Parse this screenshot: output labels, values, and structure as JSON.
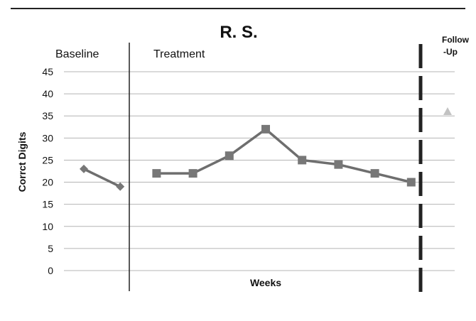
{
  "chart_data": {
    "type": "line",
    "title": "R. S.",
    "xlabel": "Weeks",
    "ylabel": "Corrct Digits",
    "ylim": [
      0,
      45
    ],
    "yticks": [
      0,
      5,
      10,
      15,
      20,
      25,
      30,
      35,
      40,
      45
    ],
    "grid": true,
    "phase_labels": {
      "baseline": "Baseline",
      "treatment": "Treatment",
      "follow_up_line1": "Follow",
      "follow_up_line2": "-Up"
    },
    "series": [
      {
        "phase": "baseline",
        "marker": "diamond",
        "x": [
          1,
          2
        ],
        "values": [
          23,
          19
        ]
      },
      {
        "phase": "treatment",
        "marker": "square",
        "x": [
          3,
          4,
          5,
          6,
          7,
          8,
          9,
          10
        ],
        "values": [
          22,
          22,
          26,
          32,
          25,
          24,
          22,
          20
        ]
      },
      {
        "phase": "follow-up",
        "marker": "triangle",
        "x": [
          11
        ],
        "values": [
          36
        ]
      }
    ],
    "colors": {
      "line": "#6e6e6e",
      "marker": "#777777",
      "follow_up_marker": "#c2c2c2",
      "grid": "#b4b4b4",
      "phase_line": "#222222",
      "text": "#111111"
    }
  }
}
